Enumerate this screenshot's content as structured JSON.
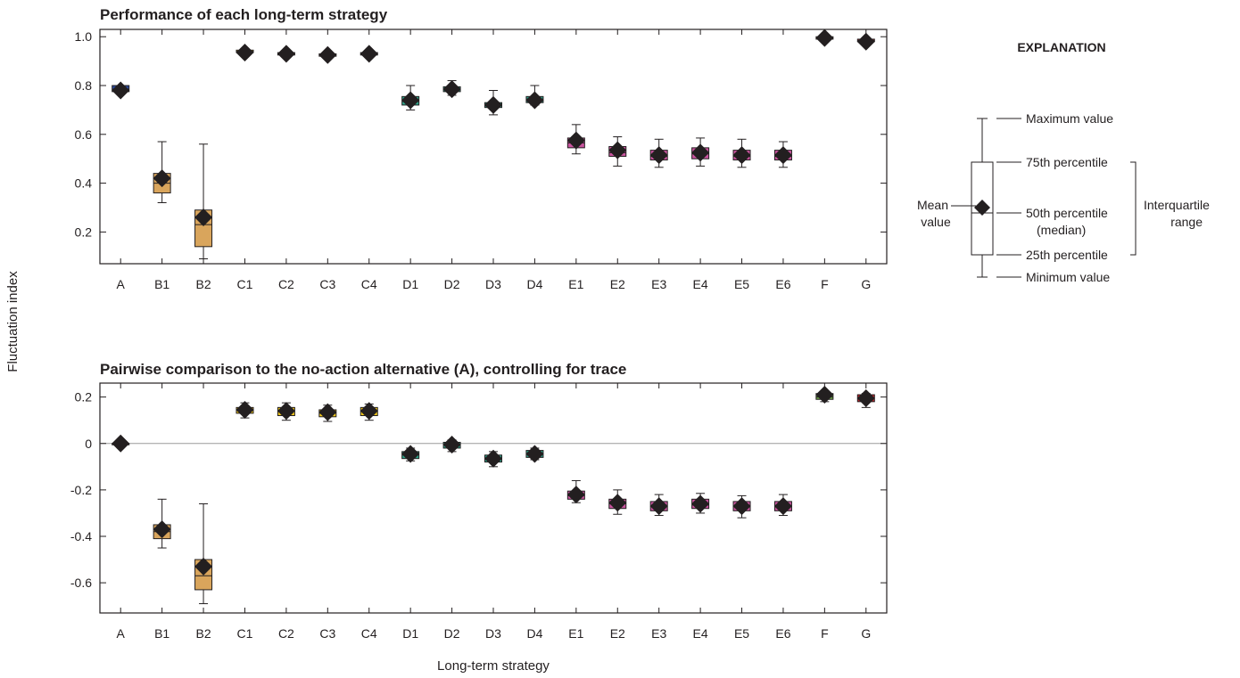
{
  "ylabel": "Fluctuation index",
  "xlabel": "Long-term strategy",
  "colors": {
    "A": "#2b4a9b",
    "B": "#d9a55c",
    "C": "#f2c81a",
    "D": "#2fa389",
    "E": "#c9549e",
    "F": "#6fa84a",
    "G": "#c8252d",
    "mean_marker": "#231f20",
    "axis": "#231f20",
    "zero_line": "#9a9a9a"
  },
  "legend": {
    "title": "EXPLANATION",
    "max": "Maximum value",
    "p75": "75th percentile",
    "p50_line1": "50th percentile",
    "p50_line2": "(median)",
    "p25": "25th percentile",
    "min": "Minimum value",
    "mean_line1": "Mean",
    "mean_line2": "value",
    "iqr_line1": "Interquartile",
    "iqr_line2": "range"
  },
  "chart_data": [
    {
      "type": "box",
      "title": "Performance of each long-term strategy",
      "xlabel": "Long-term strategy",
      "ylabel": "Fluctuation index",
      "ylim": [
        0.07,
        1.03
      ],
      "yticks": [
        "1.0",
        "0.8",
        "0.6",
        "0.4",
        "0.2"
      ],
      "ytick_values": [
        1.0,
        0.8,
        0.6,
        0.4,
        0.2
      ],
      "categories": [
        "A",
        "B1",
        "B2",
        "C1",
        "C2",
        "C3",
        "C4",
        "D1",
        "D2",
        "D3",
        "D4",
        "E1",
        "E2",
        "E3",
        "E4",
        "E5",
        "E6",
        "F",
        "G"
      ],
      "groups": [
        "A",
        "B",
        "B",
        "C",
        "C",
        "C",
        "C",
        "D",
        "D",
        "D",
        "D",
        "E",
        "E",
        "E",
        "E",
        "E",
        "E",
        "F",
        "G"
      ],
      "min": [
        0.77,
        0.32,
        0.09,
        0.93,
        0.92,
        0.915,
        0.92,
        0.7,
        0.76,
        0.68,
        0.72,
        0.52,
        0.47,
        0.465,
        0.47,
        0.465,
        0.465,
        0.985,
        0.975
      ],
      "q1": [
        0.775,
        0.36,
        0.14,
        0.935,
        0.925,
        0.92,
        0.925,
        0.72,
        0.775,
        0.71,
        0.73,
        0.545,
        0.51,
        0.495,
        0.5,
        0.495,
        0.495,
        0.99,
        0.98
      ],
      "median": [
        0.785,
        0.4,
        0.23,
        0.94,
        0.93,
        0.925,
        0.93,
        0.735,
        0.785,
        0.72,
        0.745,
        0.565,
        0.525,
        0.51,
        0.52,
        0.51,
        0.51,
        0.995,
        0.985
      ],
      "q3": [
        0.8,
        0.44,
        0.29,
        0.945,
        0.935,
        0.93,
        0.935,
        0.755,
        0.795,
        0.73,
        0.755,
        0.585,
        0.55,
        0.535,
        0.545,
        0.535,
        0.535,
        1.0,
        0.99
      ],
      "max": [
        0.8,
        0.57,
        0.56,
        0.95,
        0.94,
        0.935,
        0.94,
        0.8,
        0.82,
        0.78,
        0.8,
        0.64,
        0.59,
        0.58,
        0.585,
        0.58,
        0.57,
        1.0,
        0.99
      ],
      "mean": [
        0.78,
        0.42,
        0.26,
        0.935,
        0.93,
        0.925,
        0.93,
        0.74,
        0.785,
        0.72,
        0.74,
        0.575,
        0.535,
        0.515,
        0.525,
        0.515,
        0.515,
        0.995,
        0.98
      ]
    },
    {
      "type": "box",
      "title": "Pairwise comparison to the no-action alternative (A), controlling for trace",
      "xlabel": "Long-term strategy",
      "ylabel": "Fluctuation index",
      "ylim": [
        -0.73,
        0.26
      ],
      "yticks": [
        "0.2",
        "0",
        "-0.2",
        "-0.4",
        "-0.6"
      ],
      "ytick_values": [
        0.2,
        0,
        -0.2,
        -0.4,
        -0.6
      ],
      "zero_line": 0,
      "categories": [
        "A",
        "B1",
        "B2",
        "C1",
        "C2",
        "C3",
        "C4",
        "D1",
        "D2",
        "D3",
        "D4",
        "E1",
        "E2",
        "E3",
        "E4",
        "E5",
        "E6",
        "F",
        "G"
      ],
      "groups": [
        "A",
        "B",
        "B",
        "C",
        "C",
        "C",
        "C",
        "D",
        "D",
        "D",
        "D",
        "E",
        "E",
        "E",
        "E",
        "E",
        "E",
        "F",
        "G"
      ],
      "min": [
        0,
        -0.45,
        -0.69,
        0.11,
        0.1,
        0.095,
        0.1,
        -0.075,
        -0.035,
        -0.1,
        -0.07,
        -0.255,
        -0.305,
        -0.31,
        -0.3,
        -0.32,
        -0.31,
        0.18,
        0.155
      ],
      "q1": [
        0,
        -0.41,
        -0.63,
        0.13,
        0.12,
        0.115,
        0.12,
        -0.065,
        -0.02,
        -0.08,
        -0.06,
        -0.24,
        -0.28,
        -0.29,
        -0.28,
        -0.29,
        -0.29,
        0.19,
        0.18
      ],
      "median": [
        0,
        -0.38,
        -0.57,
        0.145,
        0.14,
        0.13,
        0.14,
        -0.05,
        -0.005,
        -0.065,
        -0.045,
        -0.225,
        -0.26,
        -0.27,
        -0.265,
        -0.27,
        -0.27,
        0.2,
        0.195
      ],
      "q3": [
        0,
        -0.35,
        -0.5,
        0.155,
        0.155,
        0.145,
        0.155,
        -0.035,
        0.005,
        -0.05,
        -0.03,
        -0.205,
        -0.24,
        -0.25,
        -0.24,
        -0.25,
        -0.25,
        0.215,
        0.21
      ],
      "max": [
        0,
        -0.24,
        -0.26,
        0.175,
        0.175,
        0.165,
        0.17,
        -0.02,
        0.015,
        -0.035,
        -0.02,
        -0.16,
        -0.2,
        -0.22,
        -0.215,
        -0.225,
        -0.22,
        0.225,
        0.215
      ],
      "mean": [
        0,
        -0.37,
        -0.53,
        0.145,
        0.14,
        0.135,
        0.14,
        -0.045,
        -0.005,
        -0.065,
        -0.045,
        -0.22,
        -0.255,
        -0.27,
        -0.26,
        -0.27,
        -0.27,
        0.21,
        0.195
      ]
    }
  ]
}
